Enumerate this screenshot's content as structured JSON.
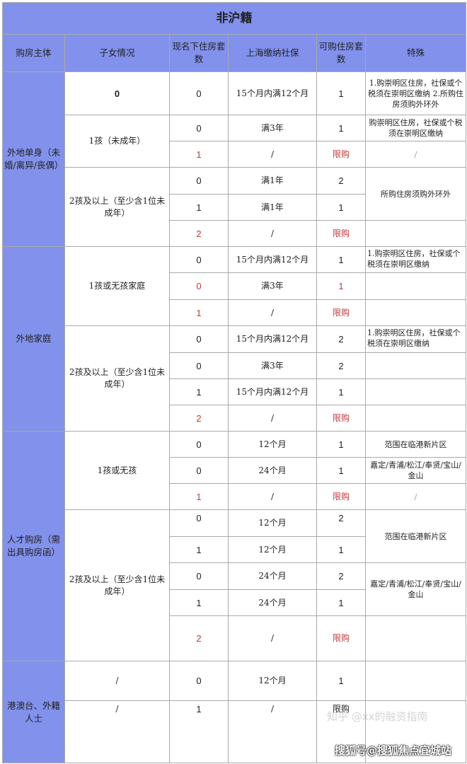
{
  "title": "非沪籍",
  "headers": [
    "购房主体",
    "子女情况",
    "现名下住房套数",
    "上海缴纳社保",
    "可购住房套数",
    "特殊"
  ],
  "subjects": [
    "外地单身（未婚/离异/丧偶）",
    "外地家庭",
    "人才购房（需出具购房函）",
    "港澳台、外籍人士"
  ],
  "children": [
    "0",
    "1孩（未成年）",
    "2孩及以上（至少含1位未成年）",
    "1孩或无孩家庭",
    "2孩及以上（至少含1位未成年）",
    "1孩或无孩",
    "2孩及以上（至少含1位未成年）",
    "/",
    "/"
  ],
  "special": [
    "1.购崇明区住房，社保或个税须在崇明区缴纳 2.所购住房须购外环外",
    "购崇明区住房，社保或个税须在崇明区缴纳",
    "/",
    "所购住房须购外环外",
    "",
    "1.购崇明区住房，社保或个税须在崇明区缴纳",
    "",
    "",
    "1.购崇明区住房，社保或个税须在崇明区缴纳",
    "",
    "",
    "",
    "范围在临港新片区",
    "嘉定/青浦/松江/奉贤/宝山/金山",
    "/",
    "范围在临港新片区",
    "嘉定/青浦/松江/奉贤/宝山/金山",
    "",
    "",
    ""
  ],
  "rows": [
    {
      "houses": "0",
      "social": "15个月内满12个月",
      "buy": "1",
      "red": false
    },
    {
      "houses": "0",
      "social": "满3年",
      "buy": "1",
      "red": false
    },
    {
      "houses": "1",
      "social": "/",
      "buy": "限购",
      "red": true
    },
    {
      "houses": "0",
      "social": "满1年",
      "buy": "2",
      "red": false
    },
    {
      "houses": "1",
      "social": "满1年",
      "buy": "1",
      "red": false
    },
    {
      "houses": "2",
      "social": "/",
      "buy": "限购",
      "red": true
    },
    {
      "houses": "0",
      "social": "15个月内满12个月",
      "buy": "1",
      "red": false
    },
    {
      "houses": "0",
      "social": "满3年",
      "buy": "1",
      "red": true
    },
    {
      "houses": "1",
      "social": "/",
      "buy": "限购",
      "red": true
    },
    {
      "houses": "0",
      "social": "15个月内满12个月",
      "buy": "2",
      "red": false
    },
    {
      "houses": "0",
      "social": "满3年",
      "buy": "2",
      "red": false
    },
    {
      "houses": "1",
      "social": "15个月内满12个月",
      "buy": "1",
      "red": false
    },
    {
      "houses": "2",
      "social": "/",
      "buy": "限购",
      "red": true
    },
    {
      "houses": "0",
      "social": "12个月",
      "buy": "1",
      "red": false
    },
    {
      "houses": "0",
      "social": "24个月",
      "buy": "1",
      "red": false
    },
    {
      "houses": "1",
      "social": "/",
      "buy": "限购",
      "red": true
    },
    {
      "houses": "0",
      "social": "12个月",
      "buy": "2",
      "red": false
    },
    {
      "houses": "1",
      "social": "12个月",
      "buy": "1",
      "red": false
    },
    {
      "houses": "0",
      "social": "24个月",
      "buy": "2",
      "red": false
    },
    {
      "houses": "1",
      "social": "24个月",
      "buy": "1",
      "red": false
    },
    {
      "houses": "2",
      "social": "/",
      "buy": "限购",
      "red": true
    },
    {
      "houses": "0",
      "social": "12个月",
      "buy": "1",
      "red": false
    },
    {
      "houses": "1",
      "social": "/",
      "buy": "限购",
      "red": false
    }
  ],
  "watermarks": [
    "知乎 @xx的融资指南",
    "搜狐号@搜狐焦点宜城站"
  ],
  "colors": {
    "header": "#8291ec",
    "restricted": "#c0393b",
    "grid": "#a9a9a9"
  }
}
